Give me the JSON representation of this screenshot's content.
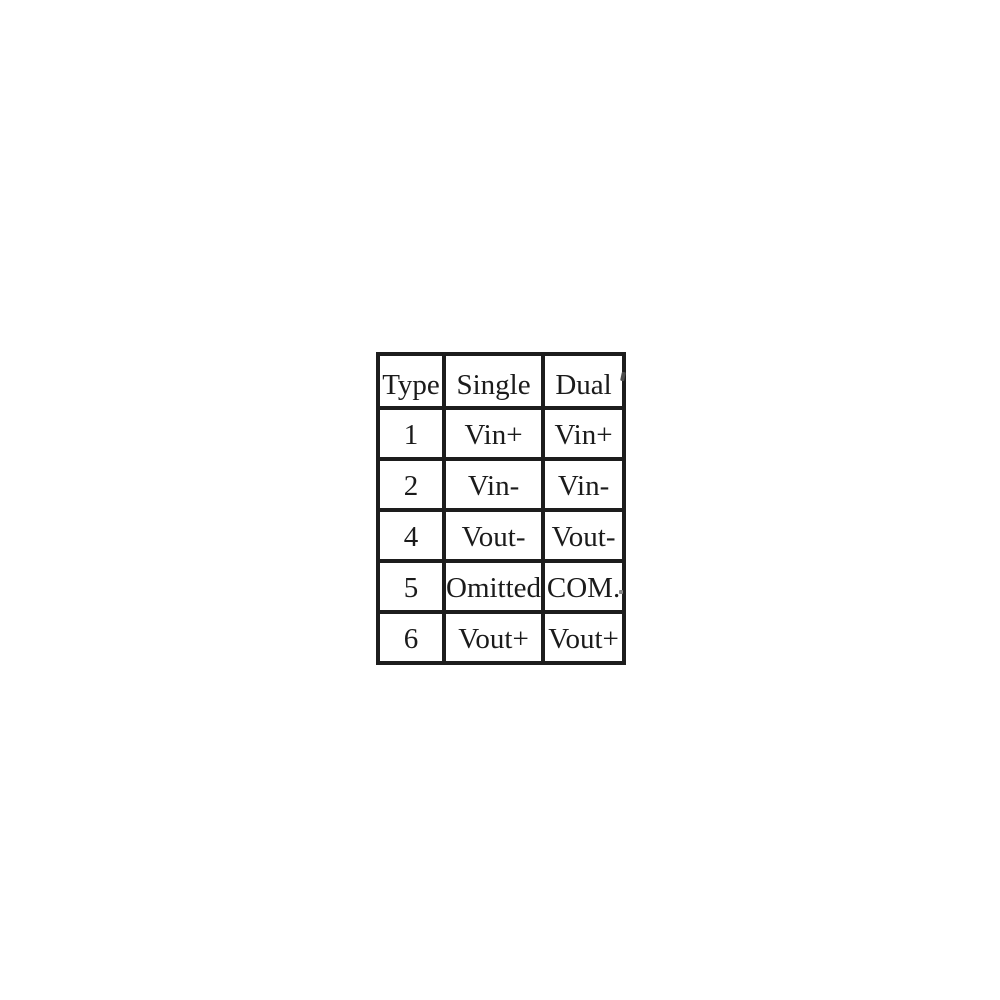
{
  "page": {
    "background_color": "#ffffff",
    "text_color": "#1b1b1b",
    "border_color": "#1d1d1d"
  },
  "table": {
    "columns": [
      "Type",
      "Single",
      "Dual"
    ],
    "rows": [
      {
        "pin": "1",
        "single": "Vin+",
        "dual": "Vin+"
      },
      {
        "pin": "2",
        "single": "Vin-",
        "dual": "Vin-"
      },
      {
        "pin": "4",
        "single": "Vout-",
        "dual": "Vout-"
      },
      {
        "pin": "5",
        "single": "Omitted",
        "dual": "COM."
      },
      {
        "pin": "6",
        "single": "Vout+",
        "dual": "Vout+"
      }
    ]
  }
}
